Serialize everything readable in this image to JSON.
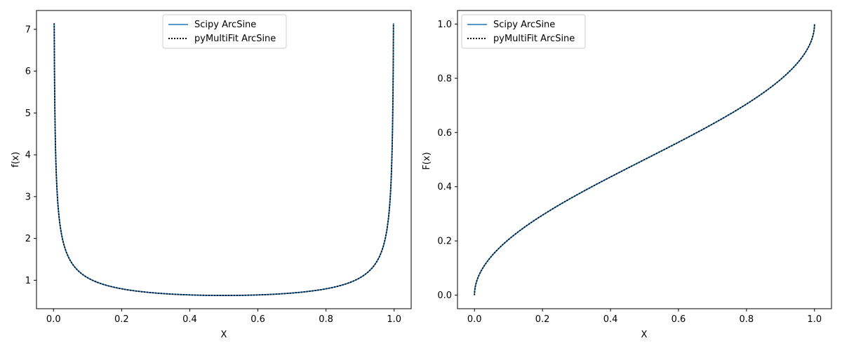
{
  "chart_data": [
    {
      "type": "line",
      "xlabel": "X",
      "ylabel": "f(x)",
      "xlim": [
        -0.05,
        1.05
      ],
      "ylim": [
        0.32,
        7.45
      ],
      "xticks": [
        0.0,
        0.2,
        0.4,
        0.6,
        0.8,
        1.0
      ],
      "xtick_labels": [
        "0.0",
        "0.2",
        "0.4",
        "0.6",
        "0.8",
        "1.0"
      ],
      "yticks": [
        1,
        2,
        3,
        4,
        5,
        6,
        7
      ],
      "ytick_labels": [
        "1",
        "2",
        "3",
        "4",
        "5",
        "6",
        "7"
      ],
      "grid": false,
      "legend_position": "upper center",
      "function": "arcsine pdf",
      "x_range": [
        0.00199,
        0.99801
      ],
      "series": [
        {
          "name": "Scipy ArcSine",
          "color": "#1f77b4",
          "style": "solid"
        },
        {
          "name": "pyMultiFit ArcSine",
          "color": "#000000",
          "style": "dotted"
        }
      ],
      "sample_points": [
        {
          "x": 0.002,
          "y": 7.13
        },
        {
          "x": 0.01,
          "y": 3.2
        },
        {
          "x": 0.05,
          "y": 1.46
        },
        {
          "x": 0.1,
          "y": 1.06
        },
        {
          "x": 0.2,
          "y": 0.8
        },
        {
          "x": 0.3,
          "y": 0.69
        },
        {
          "x": 0.4,
          "y": 0.65
        },
        {
          "x": 0.5,
          "y": 0.64
        },
        {
          "x": 0.6,
          "y": 0.65
        },
        {
          "x": 0.7,
          "y": 0.69
        },
        {
          "x": 0.8,
          "y": 0.8
        },
        {
          "x": 0.9,
          "y": 1.06
        },
        {
          "x": 0.95,
          "y": 1.46
        },
        {
          "x": 0.99,
          "y": 3.2
        },
        {
          "x": 0.998,
          "y": 7.13
        }
      ]
    },
    {
      "type": "line",
      "xlabel": "X",
      "ylabel": "F(x)",
      "xlim": [
        -0.05,
        1.05
      ],
      "ylim": [
        -0.05,
        1.05
      ],
      "xticks": [
        0.0,
        0.2,
        0.4,
        0.6,
        0.8,
        1.0
      ],
      "xtick_labels": [
        "0.0",
        "0.2",
        "0.4",
        "0.6",
        "0.8",
        "1.0"
      ],
      "yticks": [
        0.0,
        0.2,
        0.4,
        0.6,
        0.8,
        1.0
      ],
      "ytick_labels": [
        "0.0",
        "0.2",
        "0.4",
        "0.6",
        "0.8",
        "1.0"
      ],
      "grid": false,
      "legend_position": "upper left",
      "function": "arcsine cdf",
      "x_range": [
        0.0,
        1.0
      ],
      "series": [
        {
          "name": "Scipy ArcSine",
          "color": "#1f77b4",
          "style": "solid"
        },
        {
          "name": "pyMultiFit ArcSine",
          "color": "#000000",
          "style": "dotted"
        }
      ],
      "sample_points": [
        {
          "x": 0.0,
          "y": 0.0
        },
        {
          "x": 0.01,
          "y": 0.064
        },
        {
          "x": 0.05,
          "y": 0.144
        },
        {
          "x": 0.1,
          "y": 0.205
        },
        {
          "x": 0.2,
          "y": 0.295
        },
        {
          "x": 0.3,
          "y": 0.369
        },
        {
          "x": 0.4,
          "y": 0.436
        },
        {
          "x": 0.5,
          "y": 0.5
        },
        {
          "x": 0.6,
          "y": 0.564
        },
        {
          "x": 0.7,
          "y": 0.631
        },
        {
          "x": 0.8,
          "y": 0.705
        },
        {
          "x": 0.9,
          "y": 0.795
        },
        {
          "x": 0.95,
          "y": 0.856
        },
        {
          "x": 0.99,
          "y": 0.936
        },
        {
          "x": 1.0,
          "y": 1.0
        }
      ]
    }
  ]
}
